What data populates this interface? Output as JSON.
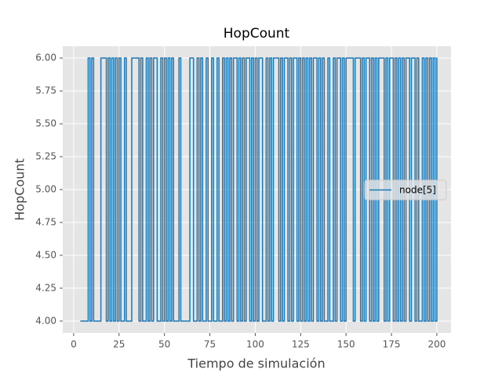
{
  "chart_data": {
    "type": "line",
    "drawstyle": "steps-post",
    "title": "HopCount",
    "x_label": "Tiempo de simulación",
    "y_label": "HopCount",
    "x": [
      4,
      8,
      9,
      10,
      11,
      15,
      18,
      19,
      20,
      21,
      22,
      23,
      24,
      25,
      26,
      28,
      29,
      32,
      36,
      37,
      38,
      40,
      41,
      42,
      43,
      44,
      46,
      48,
      49,
      50,
      51,
      52,
      53,
      54,
      55,
      58,
      59,
      64,
      66,
      68,
      69,
      70,
      71,
      73,
      74,
      76,
      77,
      79,
      80,
      82,
      83,
      84,
      85,
      86,
      87,
      88,
      90,
      91,
      92,
      93,
      94,
      95,
      97,
      98,
      99,
      100,
      101,
      102,
      104,
      106,
      107,
      108,
      109,
      110,
      113,
      114,
      115,
      116,
      118,
      119,
      120,
      121,
      123,
      124,
      125,
      126,
      127,
      128,
      129,
      130,
      131,
      132,
      134,
      135,
      136,
      137,
      138,
      140,
      141,
      143,
      144,
      145,
      147,
      148,
      149,
      150,
      154,
      155,
      158,
      159,
      160,
      161,
      163,
      164,
      165,
      166,
      167,
      168,
      171,
      172,
      173,
      174,
      176,
      177,
      178,
      179,
      180,
      181,
      182,
      183,
      185,
      186,
      188,
      189,
      190,
      192,
      193,
      194,
      195,
      196,
      197,
      198,
      199,
      200
    ],
    "series": [
      {
        "name": "node[5]",
        "color": "#1f77b4",
        "values": [
          4,
          6,
          4,
          6,
          4,
          6,
          4,
          6,
          4,
          6,
          4,
          6,
          4,
          6,
          4,
          6,
          4,
          6,
          4,
          6,
          4,
          6,
          4,
          6,
          4,
          6,
          4,
          6,
          4,
          6,
          4,
          6,
          4,
          6,
          4,
          6,
          4,
          6,
          4,
          6,
          4,
          6,
          4,
          6,
          4,
          6,
          4,
          6,
          4,
          6,
          4,
          6,
          4,
          6,
          4,
          6,
          4,
          6,
          4,
          6,
          4,
          6,
          4,
          6,
          4,
          6,
          4,
          6,
          4,
          6,
          4,
          6,
          4,
          6,
          4,
          6,
          4,
          6,
          4,
          6,
          4,
          6,
          4,
          6,
          4,
          6,
          4,
          6,
          4,
          6,
          4,
          6,
          4,
          6,
          4,
          6,
          4,
          6,
          4,
          6,
          4,
          6,
          4,
          6,
          4,
          6,
          4,
          6,
          4,
          6,
          4,
          6,
          4,
          6,
          4,
          6,
          4,
          6,
          4,
          6,
          4,
          6,
          4,
          6,
          4,
          6,
          4,
          6,
          4,
          6,
          4,
          6,
          4,
          6,
          4,
          6,
          4,
          6,
          4,
          6,
          4,
          6,
          4,
          6
        ]
      }
    ],
    "xlim": [
      -6,
      207.8
    ],
    "xticks": [
      0,
      25,
      50,
      75,
      100,
      125,
      150,
      175,
      200
    ],
    "ylim": [
      3.91,
      6.09
    ],
    "yticks": [
      {
        "value": 4,
        "label": "4.00"
      },
      {
        "value": 4.25,
        "label": "4.25"
      },
      {
        "value": 4.5,
        "label": "4.50"
      },
      {
        "value": 4.75,
        "label": "4.75"
      },
      {
        "value": 5,
        "label": "5.00"
      },
      {
        "value": 5.25,
        "label": "5.25"
      },
      {
        "value": 5.5,
        "label": "5.50"
      },
      {
        "value": 5.75,
        "label": "5.75"
      },
      {
        "value": 6,
        "label": "6.00"
      }
    ],
    "grid": true,
    "legend": "center right"
  }
}
